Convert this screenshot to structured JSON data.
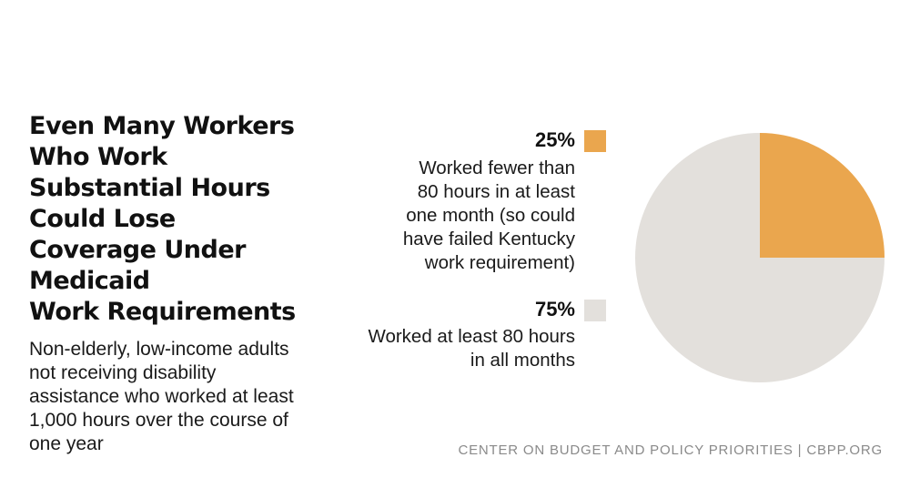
{
  "title": "Even Many Workers\nWho Work\nSubstantial Hours\nCould Lose\nCoverage Under\nMedicaid\nWork Requirements",
  "subtitle": "Non-elderly, low-income adults\nnot receiving disability\nassistance who worked at least\n1,000 hours over the course of\none year",
  "source": "CENTER ON BUDGET AND POLICY PRIORITIES | CBPP.ORG",
  "colors": {
    "orange": "#eaa64e",
    "gray": "#e3e0dc"
  },
  "chart_data": {
    "type": "pie",
    "slices": [
      {
        "value_label": "25%",
        "value": 25,
        "label": "Worked fewer than\n80 hours in at least\none month (so could\nhave failed Kentucky\nwork requirement)",
        "color": "#eaa64e"
      },
      {
        "value_label": "75%",
        "value": 75,
        "label": "Worked at least 80 hours\nin all months",
        "color": "#e3e0dc"
      }
    ]
  }
}
